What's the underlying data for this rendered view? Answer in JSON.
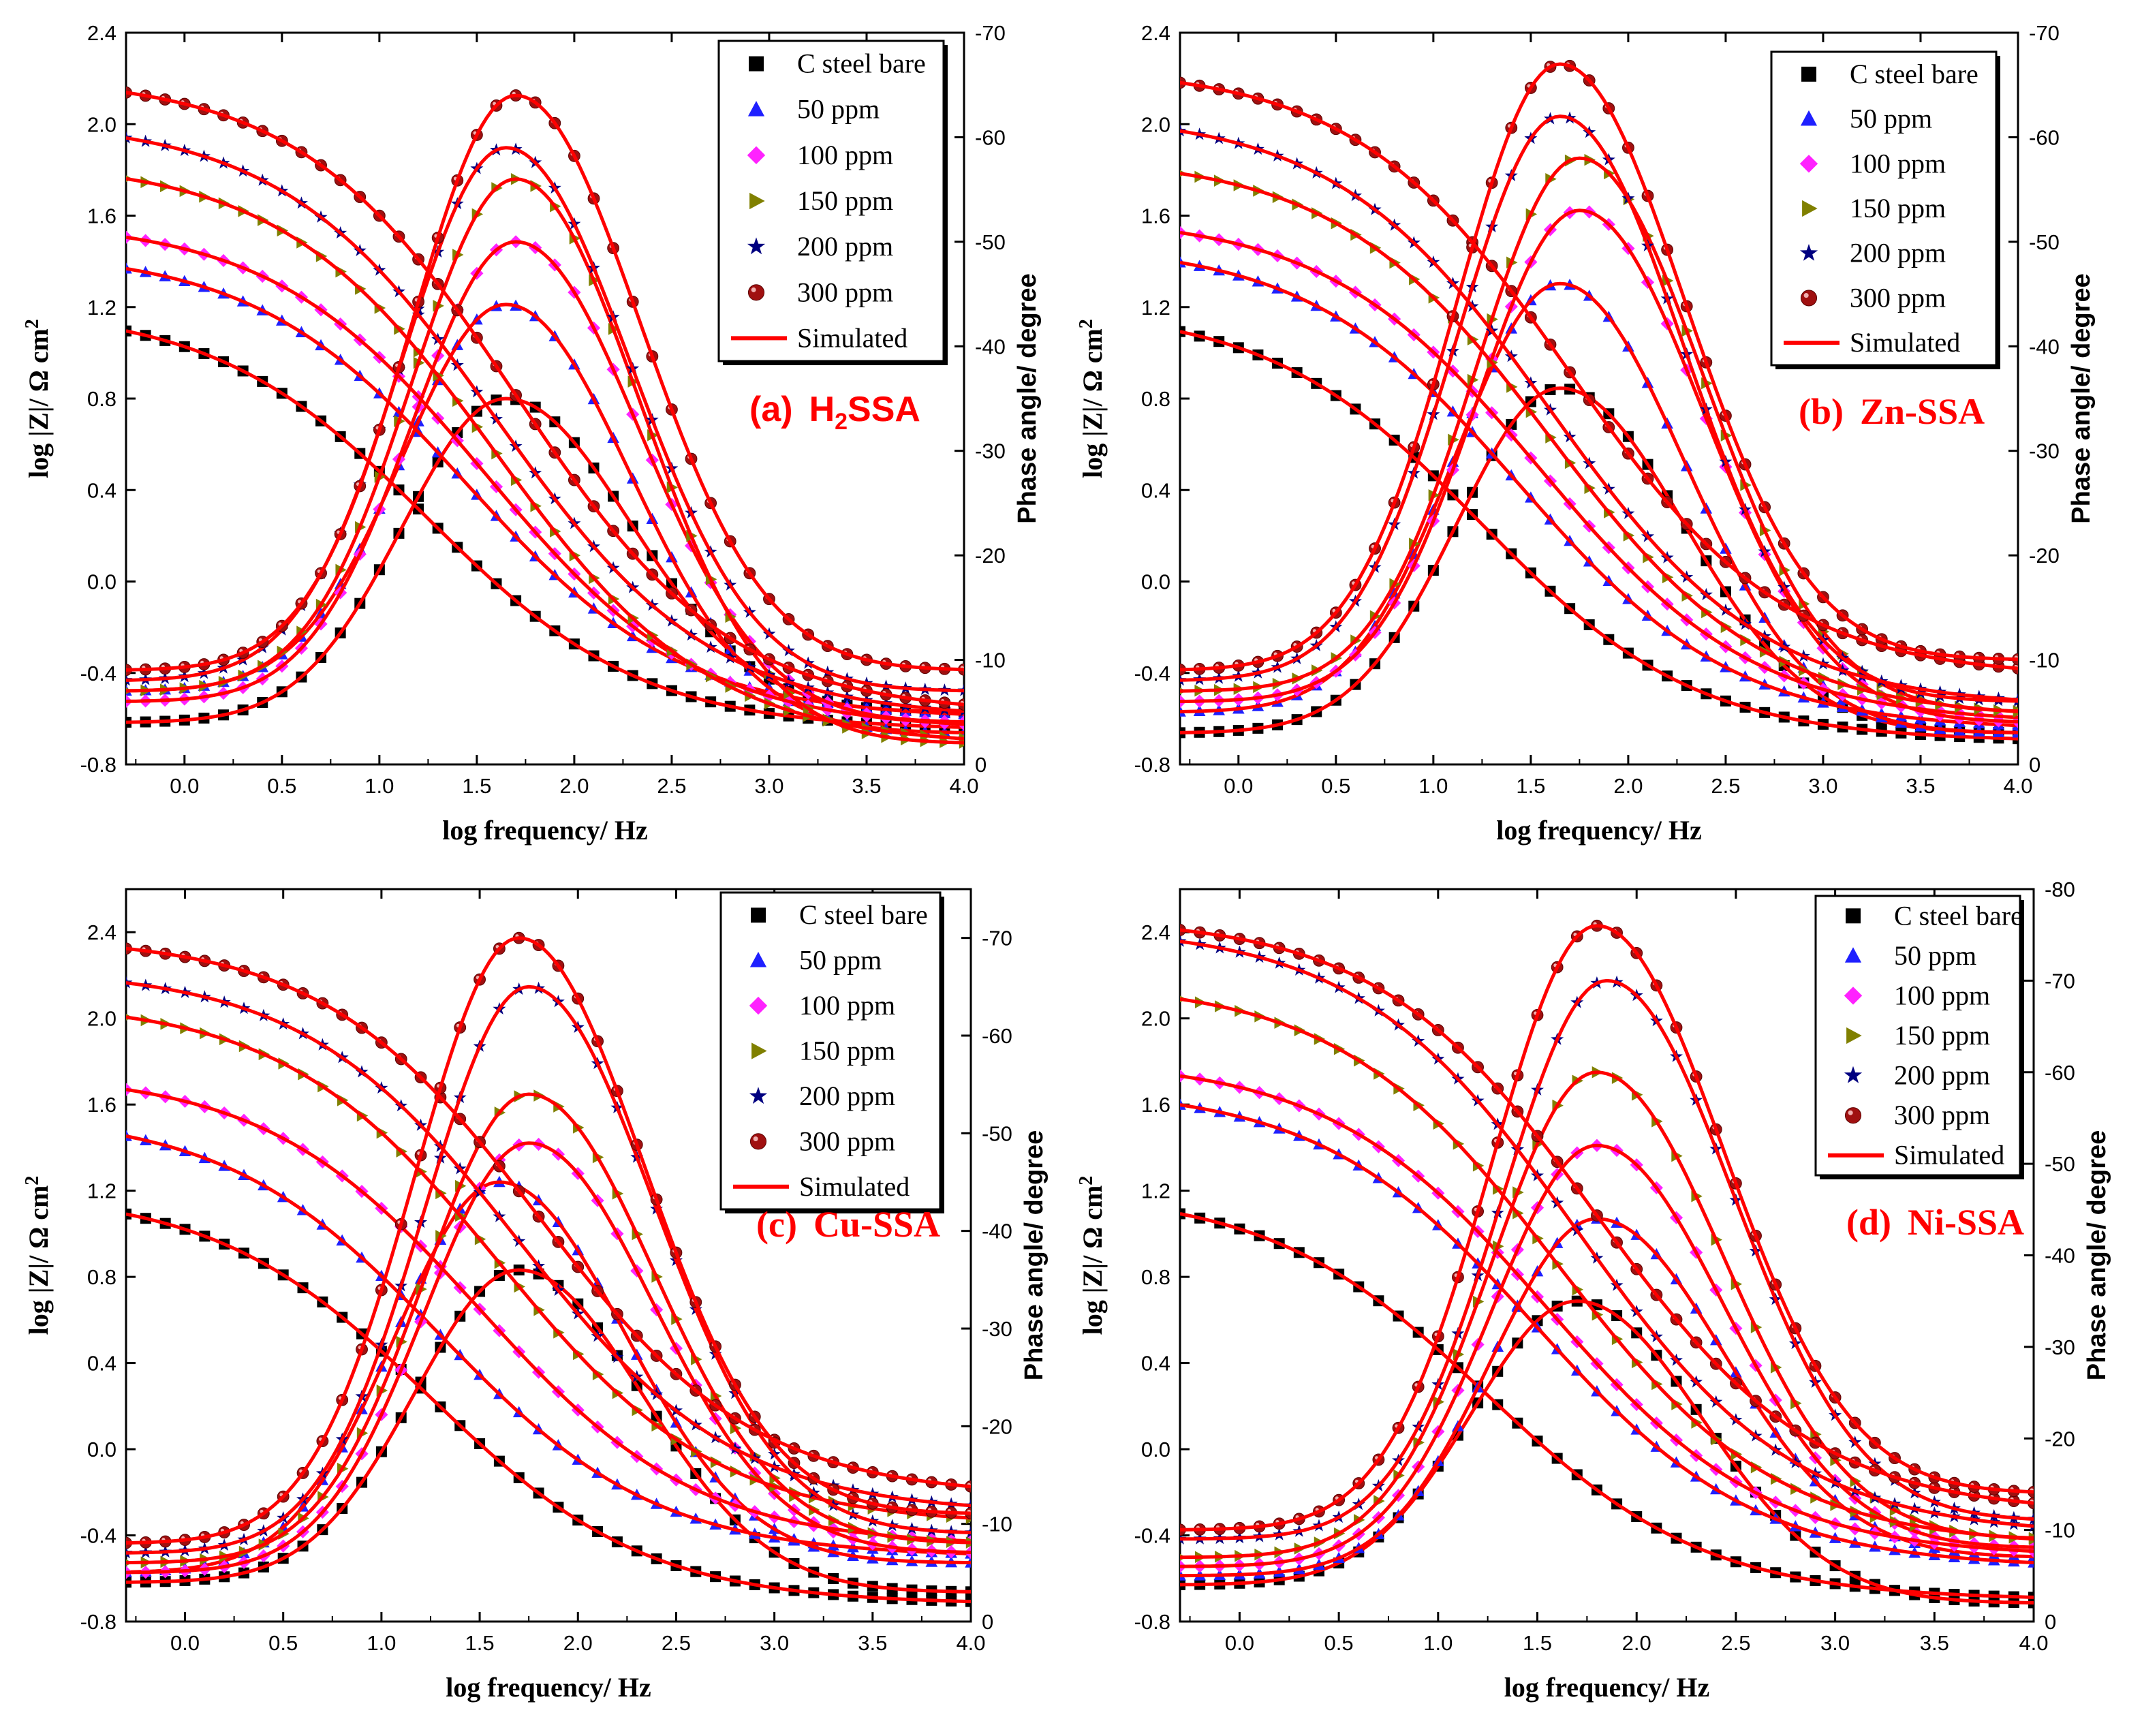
{
  "figure": {
    "colors": {
      "fit": "#ff0000",
      "label": "#ff0000",
      "axis": "#000000",
      "series": {
        "bare": "#000000",
        "p50": "#1f20ff",
        "p100": "#ff22ff",
        "p150": "#808000",
        "p200": "#000080",
        "p300": "#a01010"
      }
    },
    "legend_items": [
      {
        "key": "bare",
        "label": "C steel bare",
        "marker": "square-marker-icon"
      },
      {
        "key": "p50",
        "label": "50 ppm",
        "marker": "triangle-up-marker-icon"
      },
      {
        "key": "p100",
        "label": "100 ppm",
        "marker": "diamond-marker-icon"
      },
      {
        "key": "p150",
        "label": "150 ppm",
        "marker": "triangle-right-marker-icon"
      },
      {
        "key": "p200",
        "label": "200 ppm",
        "marker": "star-marker-icon"
      },
      {
        "key": "p300",
        "label": "300 ppm",
        "marker": "sphere-marker-icon"
      },
      {
        "key": "fit",
        "label": "Simulated",
        "marker": "line-marker-icon"
      }
    ]
  },
  "chart_data": [
    {
      "type": "line",
      "panel_label": "(a)",
      "compound_main": "H",
      "compound_sub": "2",
      "compound_rest": "SSA",
      "xlabel": "log frequency/ Hz",
      "ylabel_left": "log |Z|/ Ω cm",
      "ylabel_left_sup": "2",
      "ylabel_right": "Phase angle/ degree",
      "xlim": [
        -0.3,
        4.0
      ],
      "ylim_left": [
        -0.8,
        2.4
      ],
      "ylim_right": [
        0,
        -70
      ],
      "xticks": [
        "0.0",
        "0.5",
        "1.0",
        "1.5",
        "2.0",
        "2.5",
        "3.0",
        "3.5",
        "4.0"
      ],
      "yticks_left": [
        "-0.8",
        "-0.4",
        "0.0",
        "0.4",
        "0.8",
        "1.2",
        "1.6",
        "2.0",
        "2.4"
      ],
      "yticks_right": [
        "0",
        "-10",
        "-20",
        "-30",
        "-40",
        "-50",
        "-60",
        "-70"
      ],
      "legend_position": "top-right",
      "series": [
        {
          "key": "bare",
          "name": "C steel bare",
          "logZ_low": 1.2,
          "logZ_high": -0.65,
          "logZ_fc": 1.25,
          "phase_peak": -35,
          "phase_peak_x": 1.65,
          "phase_low": -4,
          "phase_high": -5
        },
        {
          "key": "p50",
          "name": "50 ppm",
          "logZ_low": 1.45,
          "logZ_high": -0.6,
          "logZ_fc": 1.45,
          "phase_peak": -44,
          "phase_peak_x": 1.65,
          "phase_low": -7,
          "phase_high": -3
        },
        {
          "key": "p100",
          "name": "100 ppm",
          "logZ_low": 1.58,
          "logZ_high": -0.65,
          "logZ_fc": 1.55,
          "phase_peak": -50,
          "phase_peak_x": 1.7,
          "phase_low": -6,
          "phase_high": -4
        },
        {
          "key": "p150",
          "name": "150 ppm",
          "logZ_low": 1.84,
          "logZ_high": -0.72,
          "logZ_fc": 1.6,
          "phase_peak": -56,
          "phase_peak_x": 1.7,
          "phase_low": -7,
          "phase_high": -2
        },
        {
          "key": "p200",
          "name": "200 ppm",
          "logZ_low": 2.02,
          "logZ_high": -0.6,
          "logZ_fc": 1.6,
          "phase_peak": -59,
          "phase_peak_x": 1.65,
          "phase_low": -8,
          "phase_high": -7
        },
        {
          "key": "p300",
          "name": "300 ppm",
          "logZ_low": 2.21,
          "logZ_high": -0.58,
          "logZ_fc": 1.7,
          "phase_peak": -64,
          "phase_peak_x": 1.7,
          "phase_low": -9,
          "phase_high": -9
        }
      ]
    },
    {
      "type": "line",
      "panel_label": "(b)",
      "compound_main": "Zn-SSA",
      "compound_sub": "",
      "compound_rest": "",
      "xlabel": "log frequency/ Hz",
      "ylabel_left": "log |Z|/ Ω cm",
      "ylabel_left_sup": "2",
      "ylabel_right": "Phase angle/ degree",
      "xlim": [
        -0.3,
        4.0
      ],
      "ylim_left": [
        -0.8,
        2.4
      ],
      "ylim_right": [
        0,
        -70
      ],
      "xticks": [
        "0.0",
        "0.5",
        "1.0",
        "1.5",
        "2.0",
        "2.5",
        "3.0",
        "3.5",
        "4.0"
      ],
      "yticks_left": [
        "-0.8",
        "-0.4",
        "0.0",
        "0.4",
        "0.8",
        "1.2",
        "1.6",
        "2.0",
        "2.4"
      ],
      "yticks_right": [
        "0",
        "-10",
        "-20",
        "-30",
        "-40",
        "-50",
        "-60",
        "-70"
      ],
      "legend_position": "top-right",
      "series": [
        {
          "key": "bare",
          "name": "C steel bare",
          "logZ_low": 1.2,
          "logZ_high": -0.7,
          "logZ_fc": 1.25,
          "phase_peak": -36,
          "phase_peak_x": 1.65,
          "phase_low": -3,
          "phase_high": -3
        },
        {
          "key": "p50",
          "name": "50 ppm",
          "logZ_low": 1.48,
          "logZ_high": -0.65,
          "logZ_fc": 1.45,
          "phase_peak": -46,
          "phase_peak_x": 1.65,
          "phase_low": -5,
          "phase_high": -3
        },
        {
          "key": "p100",
          "name": "100 ppm",
          "logZ_low": 1.6,
          "logZ_high": -0.62,
          "logZ_fc": 1.55,
          "phase_peak": -53,
          "phase_peak_x": 1.75,
          "phase_low": -6,
          "phase_high": -4
        },
        {
          "key": "p150",
          "name": "150 ppm",
          "logZ_low": 1.86,
          "logZ_high": -0.6,
          "logZ_fc": 1.6,
          "phase_peak": -58,
          "phase_peak_x": 1.75,
          "phase_low": -7,
          "phase_high": -5
        },
        {
          "key": "p200",
          "name": "200 ppm",
          "logZ_low": 2.05,
          "logZ_high": -0.55,
          "logZ_fc": 1.6,
          "phase_peak": -62,
          "phase_peak_x": 1.65,
          "phase_low": -8,
          "phase_high": -6
        },
        {
          "key": "p300",
          "name": "300 ppm",
          "logZ_low": 2.25,
          "logZ_high": -0.42,
          "logZ_fc": 1.7,
          "phase_peak": -67,
          "phase_peak_x": 1.65,
          "phase_low": -9,
          "phase_high": -10
        }
      ]
    },
    {
      "type": "line",
      "panel_label": "(c)",
      "compound_main": "Cu-SSA",
      "compound_sub": "",
      "compound_rest": "",
      "xlabel": "log frequency/ Hz",
      "ylabel_left": "log |Z|/ Ω cm",
      "ylabel_left_sup": "2",
      "ylabel_right": "Phase angle/ degree",
      "xlim": [
        -0.3,
        4.0
      ],
      "ylim_left": [
        -0.8,
        2.6
      ],
      "ylim_right": [
        0,
        -75
      ],
      "xticks": [
        "0.0",
        "0.5",
        "1.0",
        "1.5",
        "2.0",
        "2.5",
        "3.0",
        "3.5",
        "4.0"
      ],
      "yticks_left": [
        "-0.8",
        "-0.4",
        "0.0",
        "0.4",
        "0.8",
        "1.2",
        "1.6",
        "2.0",
        "2.4"
      ],
      "yticks_right": [
        "0",
        "-10",
        "-20",
        "-30",
        "-40",
        "-50",
        "-60",
        "-70"
      ],
      "legend_position": "top-right",
      "series": [
        {
          "key": "bare",
          "name": "C steel bare",
          "logZ_low": 1.2,
          "logZ_high": -0.72,
          "logZ_fc": 1.25,
          "phase_peak": -36,
          "phase_peak_x": 1.7,
          "phase_low": -4,
          "phase_high": -3
        },
        {
          "key": "p50",
          "name": "50 ppm",
          "logZ_low": 1.56,
          "logZ_high": -0.5,
          "logZ_fc": 1.3,
          "phase_peak": -45,
          "phase_peak_x": 1.6,
          "phase_low": -5,
          "phase_high": -6
        },
        {
          "key": "p100",
          "name": "100 ppm",
          "logZ_low": 1.75,
          "logZ_high": -0.45,
          "logZ_fc": 1.5,
          "phase_peak": -49,
          "phase_peak_x": 1.75,
          "phase_low": -5,
          "phase_high": -7
        },
        {
          "key": "p150",
          "name": "150 ppm",
          "logZ_low": 2.08,
          "logZ_high": -0.35,
          "logZ_fc": 1.6,
          "phase_peak": -54,
          "phase_peak_x": 1.75,
          "phase_low": -6,
          "phase_high": -8
        },
        {
          "key": "p200",
          "name": "200 ppm",
          "logZ_low": 2.23,
          "logZ_high": -0.3,
          "logZ_fc": 1.7,
          "phase_peak": -65,
          "phase_peak_x": 1.75,
          "phase_low": -7,
          "phase_high": -9
        },
        {
          "key": "p300",
          "name": "300 ppm",
          "logZ_low": 2.38,
          "logZ_high": -0.22,
          "logZ_fc": 1.8,
          "phase_peak": -70,
          "phase_peak_x": 1.7,
          "phase_low": -8,
          "phase_high": -11
        }
      ]
    },
    {
      "type": "line",
      "panel_label": "(d)",
      "compound_main": "Ni-SSA",
      "compound_sub": "",
      "compound_rest": "",
      "xlabel": "log frequency/ Hz",
      "ylabel_left": "log |Z|/ Ω cm",
      "ylabel_left_sup": "2",
      "ylabel_right": "Phase angle/ degree",
      "xlim": [
        -0.3,
        4.0
      ],
      "ylim_left": [
        -0.8,
        2.6
      ],
      "ylim_right": [
        0,
        -80
      ],
      "xticks": [
        "0.0",
        "0.5",
        "1.0",
        "1.5",
        "2.0",
        "2.5",
        "3.0",
        "3.5",
        "4.0"
      ],
      "yticks_left": [
        "-0.8",
        "-0.4",
        "0.0",
        "0.4",
        "0.8",
        "1.2",
        "1.6",
        "2.0",
        "2.4"
      ],
      "yticks_right": [
        "0",
        "-10",
        "-20",
        "-30",
        "-40",
        "-50",
        "-60",
        "-70",
        "-80"
      ],
      "legend_position": "top-right",
      "series": [
        {
          "key": "bare",
          "name": "C steel bare",
          "logZ_low": 1.2,
          "logZ_high": -0.7,
          "logZ_fc": 1.25,
          "phase_peak": -35,
          "phase_peak_x": 1.7,
          "phase_low": -4,
          "phase_high": -2
        },
        {
          "key": "p50",
          "name": "50 ppm",
          "logZ_low": 1.68,
          "logZ_high": -0.55,
          "logZ_fc": 1.5,
          "phase_peak": -44,
          "phase_peak_x": 1.8,
          "phase_low": -5,
          "phase_high": -7
        },
        {
          "key": "p100",
          "name": "100 ppm",
          "logZ_low": 1.81,
          "logZ_high": -0.5,
          "logZ_fc": 1.55,
          "phase_peak": -52,
          "phase_peak_x": 1.8,
          "phase_low": -6,
          "phase_high": -8
        },
        {
          "key": "p150",
          "name": "150 ppm",
          "logZ_low": 2.17,
          "logZ_high": -0.45,
          "logZ_fc": 1.6,
          "phase_peak": -60,
          "phase_peak_x": 1.8,
          "phase_low": -7,
          "phase_high": -9
        },
        {
          "key": "p200",
          "name": "200 ppm",
          "logZ_low": 2.43,
          "logZ_high": -0.4,
          "logZ_fc": 1.7,
          "phase_peak": -70,
          "phase_peak_x": 1.85,
          "phase_low": -9,
          "phase_high": -11
        },
        {
          "key": "p300",
          "name": "300 ppm",
          "logZ_low": 2.47,
          "logZ_high": -0.3,
          "logZ_fc": 1.8,
          "phase_peak": -76,
          "phase_peak_x": 1.8,
          "phase_low": -10,
          "phase_high": -14
        }
      ]
    }
  ]
}
